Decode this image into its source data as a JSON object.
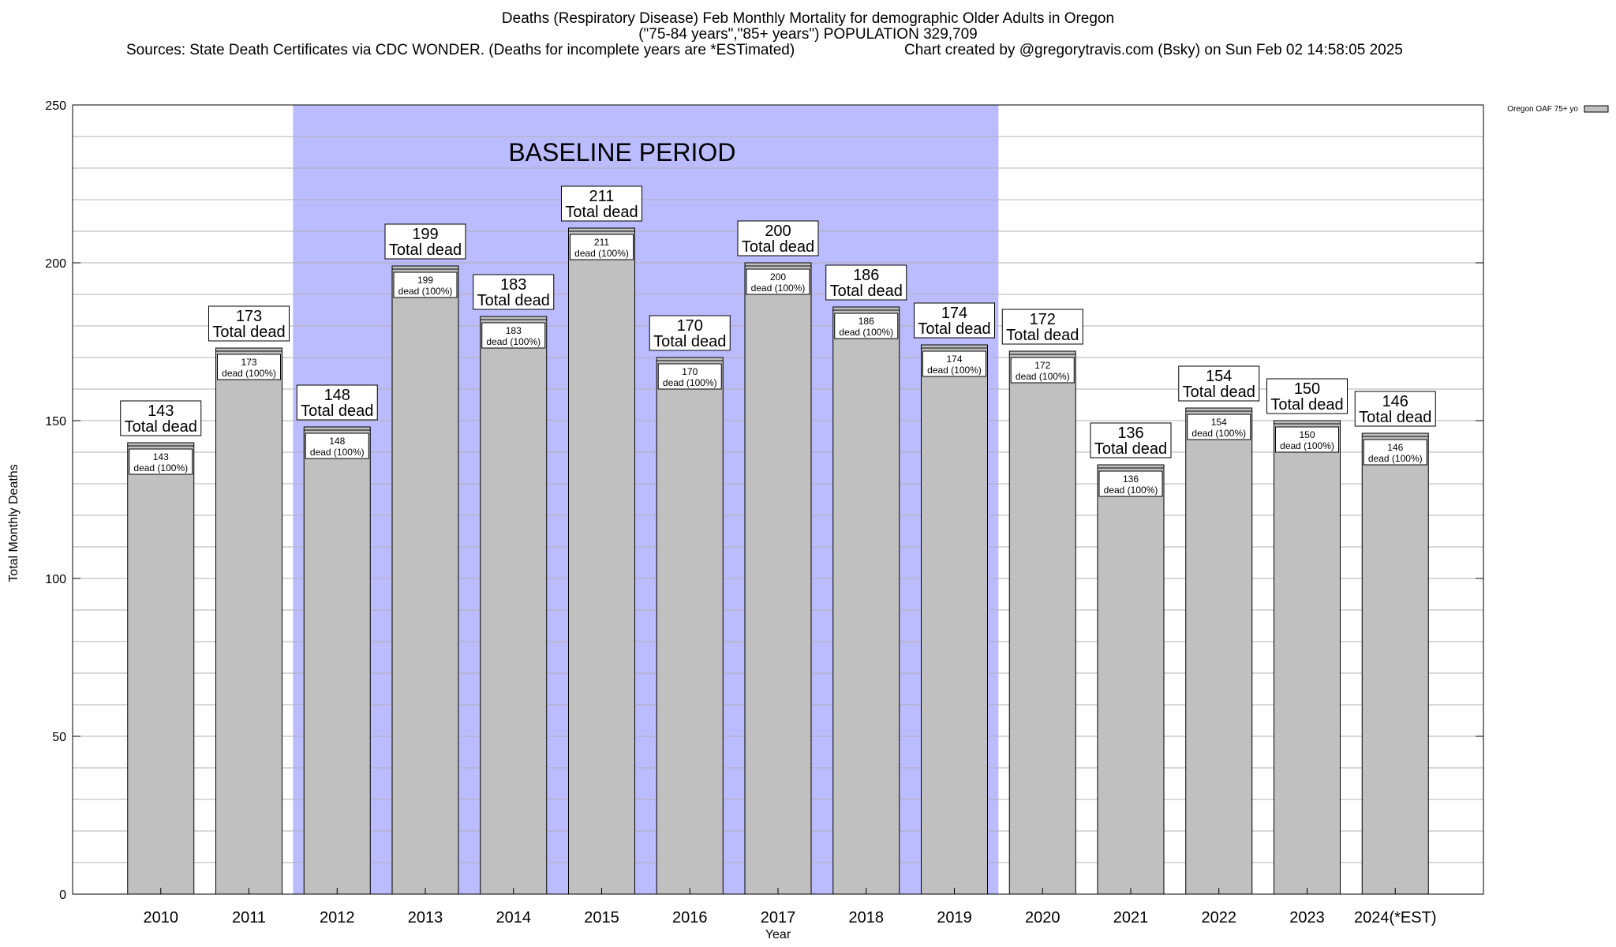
{
  "header": {
    "title_line1": "Deaths (Respiratory Disease) Feb Monthly Mortality for demographic Older Adults in Oregon",
    "title_line2": "(\"75-84 years\",\"85+ years\") POPULATION 329,709",
    "sources": "Sources: State Death Certificates via CDC WONDER. (Deaths for incomplete years are *ESTimated)",
    "credit": "Chart created by @gregorytravis.com (Bsky) on Sun Feb 02 14:58:05 2025"
  },
  "chart_data": {
    "type": "bar",
    "xlabel": "Year",
    "ylabel": "Total Monthly Deaths",
    "ylim": [
      0,
      250
    ],
    "yticks": [
      0,
      50,
      100,
      150,
      200,
      250
    ],
    "minor_grid_step": 10,
    "grid": true,
    "legend": {
      "placement": "top-right",
      "label": "Oregon OAF 75+ yo"
    },
    "categories": [
      "2010",
      "2011",
      "2012",
      "2013",
      "2014",
      "2015",
      "2016",
      "2017",
      "2018",
      "2019",
      "2020",
      "2021",
      "2022",
      "2023",
      "2024(*EST)"
    ],
    "series": [
      {
        "name": "Oregon OAF 75+ yo",
        "values": [
          143,
          173,
          148,
          199,
          183,
          211,
          170,
          200,
          186,
          174,
          172,
          136,
          154,
          150,
          146
        ]
      }
    ],
    "outer_label_suffix": "Total dead",
    "inner_label_suffix": "dead (100%)",
    "baseline_period": {
      "label": "BASELINE PERIOD",
      "from": "2012",
      "to": "2019"
    },
    "colors": {
      "bar": "#c0c0c0",
      "baseline": "#bbbbff",
      "grid": "#b0b0b0"
    }
  }
}
